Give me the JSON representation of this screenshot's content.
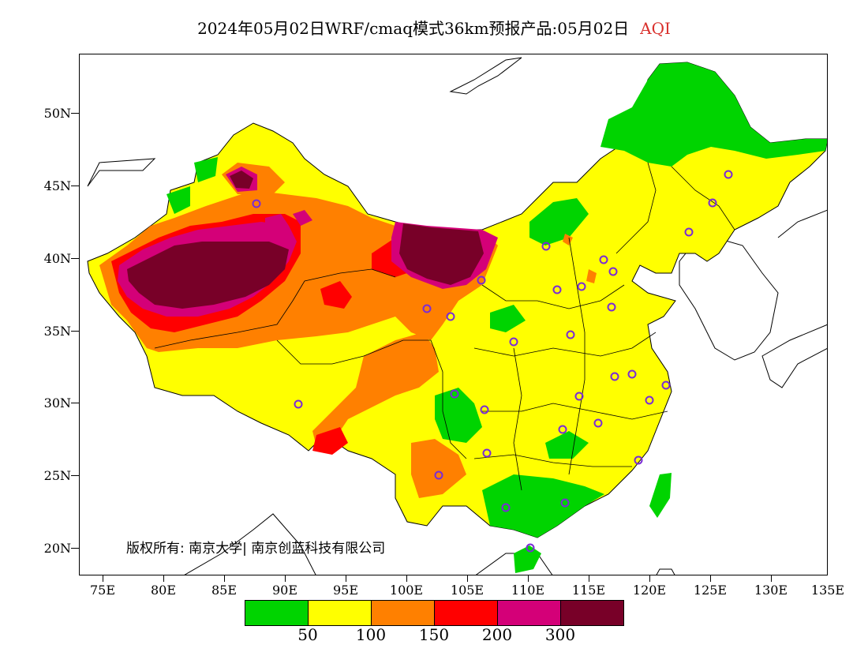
{
  "title": {
    "main": "2024年05月02日WRF/cmaq模式36km预报产品:05月02日",
    "variable": "AQI"
  },
  "map": {
    "region": "China",
    "lat_ticks": [
      "20N",
      "25N",
      "30N",
      "35N",
      "40N",
      "45N",
      "50N"
    ],
    "lon_ticks": [
      "75E",
      "80E",
      "85E",
      "90E",
      "95E",
      "100E",
      "105E",
      "110E",
      "115E",
      "120E",
      "125E",
      "130E",
      "135E"
    ],
    "city_marker_color": "#7a2bd6"
  },
  "copyright": "版权所有: 南京大学| 南京创蓝科技有限公司",
  "legend": {
    "colors": [
      "#00d400",
      "#ffff00",
      "#ff8000",
      "#ff0000",
      "#d40078",
      "#780028"
    ],
    "labels": [
      "50",
      "100",
      "150",
      "200",
      "300"
    ]
  }
}
